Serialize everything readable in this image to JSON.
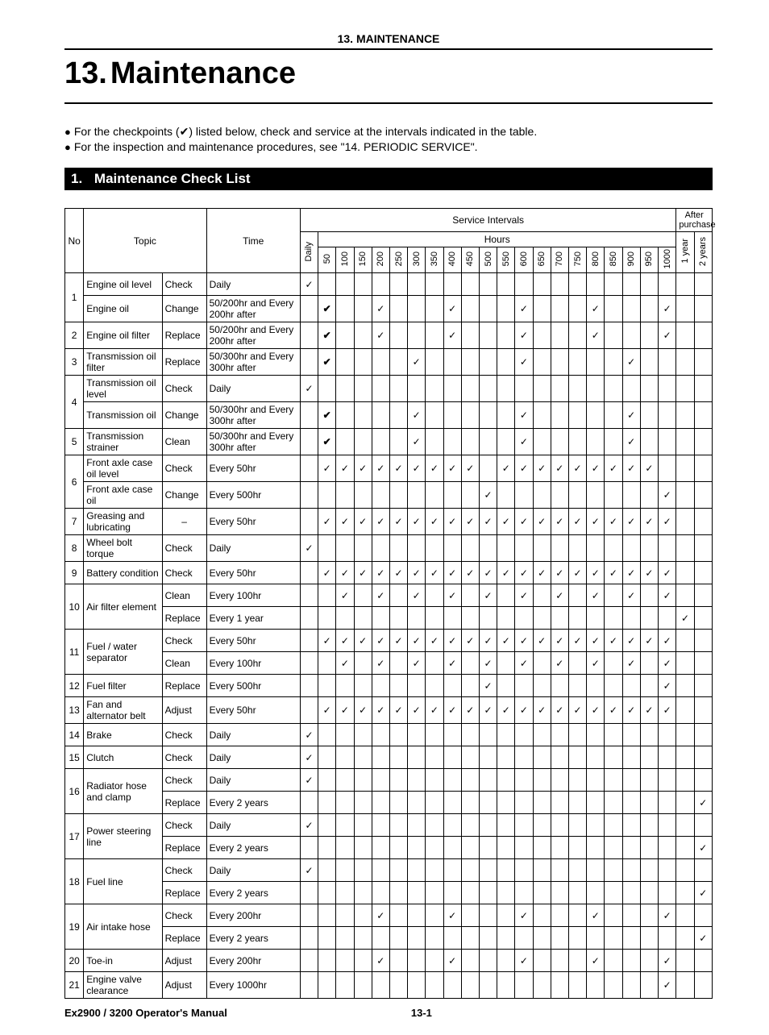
{
  "running_head": "13. MAINTENANCE",
  "chapter_number": "13.",
  "chapter_title": "Maintenance",
  "intro": [
    "For the checkpoints (✔) listed below, check and service at the intervals indicated in the table.",
    "For the inspection and maintenance procedures, see \"14. PERIODIC SERVICE\"."
  ],
  "section_num": "1.",
  "section_title": "Maintenance Check List",
  "head": {
    "no": "No",
    "topic": "Topic",
    "time": "Time",
    "service_intervals": "Service Intervals",
    "after_purchase": "After purchase",
    "hours": "Hours",
    "daily": "Daily",
    "year1": "1 year",
    "year2": "2 years",
    "hour_cols": [
      "50",
      "100",
      "150",
      "200",
      "250",
      "300",
      "350",
      "400",
      "450",
      "500",
      "550",
      "600",
      "650",
      "700",
      "750",
      "800",
      "850",
      "900",
      "950",
      "1000"
    ]
  },
  "tick": "✓",
  "tick_bold": "✔",
  "dash": "–",
  "rows": [
    {
      "no": "1",
      "items": [
        {
          "topic": "Engine oil level",
          "act": "Check",
          "time": "Daily",
          "daily": "t",
          "h": [],
          "y1": "",
          "y2": ""
        },
        {
          "topic": "Engine oil",
          "act": "Change",
          "time": "50/200hr and Every 200hr after",
          "daily": "",
          "h": [
            {
              "i": 0,
              "b": true
            },
            {
              "i": 3
            },
            {
              "i": 7
            },
            {
              "i": 11
            },
            {
              "i": 15
            },
            {
              "i": 19
            }
          ],
          "y1": "",
          "y2": ""
        }
      ]
    },
    {
      "no": "2",
      "items": [
        {
          "topic": "Engine oil filter",
          "act": "Replace",
          "time": "50/200hr and Every 200hr after",
          "daily": "",
          "h": [
            {
              "i": 0,
              "b": true
            },
            {
              "i": 3
            },
            {
              "i": 7
            },
            {
              "i": 11
            },
            {
              "i": 15
            },
            {
              "i": 19
            }
          ],
          "y1": "",
          "y2": ""
        }
      ]
    },
    {
      "no": "3",
      "items": [
        {
          "topic": "Transmission oil filter",
          "act": "Replace",
          "time": "50/300hr and Every 300hr after",
          "daily": "",
          "h": [
            {
              "i": 0,
              "b": true
            },
            {
              "i": 5
            },
            {
              "i": 11
            },
            {
              "i": 17
            }
          ],
          "y1": "",
          "y2": ""
        }
      ]
    },
    {
      "no": "4",
      "items": [
        {
          "topic": "Transmission oil level",
          "act": "Check",
          "time": "Daily",
          "daily": "t",
          "h": [],
          "y1": "",
          "y2": ""
        },
        {
          "topic": "Transmission oil",
          "act": "Change",
          "time": "50/300hr and Every 300hr after",
          "daily": "",
          "h": [
            {
              "i": 0,
              "b": true
            },
            {
              "i": 5
            },
            {
              "i": 11
            },
            {
              "i": 17
            }
          ],
          "y1": "",
          "y2": ""
        }
      ]
    },
    {
      "no": "5",
      "items": [
        {
          "topic": "Transmission strainer",
          "act": "Clean",
          "time": "50/300hr and Every 300hr after",
          "daily": "",
          "h": [
            {
              "i": 0,
              "b": true
            },
            {
              "i": 5
            },
            {
              "i": 11
            },
            {
              "i": 17
            }
          ],
          "y1": "",
          "y2": ""
        }
      ]
    },
    {
      "no": "6",
      "items": [
        {
          "topic": "Front axle case oil level",
          "act": "Check",
          "time": "Every 50hr",
          "daily": "",
          "h": [
            {
              "i": 0
            },
            {
              "i": 1
            },
            {
              "i": 2
            },
            {
              "i": 3
            },
            {
              "i": 4
            },
            {
              "i": 5
            },
            {
              "i": 6
            },
            {
              "i": 7
            },
            {
              "i": 8
            },
            {
              "i": 10
            },
            {
              "i": 11
            },
            {
              "i": 12
            },
            {
              "i": 13
            },
            {
              "i": 14
            },
            {
              "i": 15
            },
            {
              "i": 16
            },
            {
              "i": 17
            },
            {
              "i": 18
            }
          ],
          "y1": "",
          "y2": ""
        },
        {
          "topic": "Front axle case oil",
          "act": "Change",
          "time": "Every 500hr",
          "daily": "",
          "h": [
            {
              "i": 9
            },
            {
              "i": 19
            }
          ],
          "y1": "",
          "y2": ""
        }
      ]
    },
    {
      "no": "7",
      "items": [
        {
          "topic": "Greasing and lubricating",
          "act": "–",
          "time": "Every 50hr",
          "daily": "",
          "h": [
            {
              "i": 0
            },
            {
              "i": 1
            },
            {
              "i": 2
            },
            {
              "i": 3
            },
            {
              "i": 4
            },
            {
              "i": 5
            },
            {
              "i": 6
            },
            {
              "i": 7
            },
            {
              "i": 8
            },
            {
              "i": 9
            },
            {
              "i": 10
            },
            {
              "i": 11
            },
            {
              "i": 12
            },
            {
              "i": 13
            },
            {
              "i": 14
            },
            {
              "i": 15
            },
            {
              "i": 16
            },
            {
              "i": 17
            },
            {
              "i": 18
            },
            {
              "i": 19
            }
          ],
          "y1": "",
          "y2": ""
        }
      ]
    },
    {
      "no": "8",
      "items": [
        {
          "topic": "Wheel bolt torque",
          "act": "Check",
          "time": "Daily",
          "daily": "t",
          "h": [],
          "y1": "",
          "y2": ""
        }
      ]
    },
    {
      "no": "9",
      "items": [
        {
          "topic": "Battery condition",
          "act": "Check",
          "time": "Every 50hr",
          "daily": "",
          "h": [
            {
              "i": 0
            },
            {
              "i": 1
            },
            {
              "i": 2
            },
            {
              "i": 3
            },
            {
              "i": 4
            },
            {
              "i": 5
            },
            {
              "i": 6
            },
            {
              "i": 7
            },
            {
              "i": 8
            },
            {
              "i": 9
            },
            {
              "i": 10
            },
            {
              "i": 11
            },
            {
              "i": 12
            },
            {
              "i": 13
            },
            {
              "i": 14
            },
            {
              "i": 15
            },
            {
              "i": 16
            },
            {
              "i": 17
            },
            {
              "i": 18
            },
            {
              "i": 19
            }
          ],
          "y1": "",
          "y2": ""
        }
      ]
    },
    {
      "no": "10",
      "items": [
        {
          "topic": "Air filter element",
          "act": "Clean",
          "time": "Every 100hr",
          "daily": "",
          "h": [
            {
              "i": 1
            },
            {
              "i": 3
            },
            {
              "i": 5
            },
            {
              "i": 7
            },
            {
              "i": 9
            },
            {
              "i": 11
            },
            {
              "i": 13
            },
            {
              "i": 15
            },
            {
              "i": 17
            },
            {
              "i": 19
            }
          ],
          "y1": "",
          "y2": ""
        },
        {
          "topic": "",
          "act": "Replace",
          "time": "Every 1 year",
          "daily": "",
          "h": [],
          "y1": "t",
          "y2": ""
        }
      ]
    },
    {
      "no": "11",
      "items": [
        {
          "topic": "Fuel / water separator",
          "act": "Check",
          "time": "Every 50hr",
          "daily": "",
          "h": [
            {
              "i": 0
            },
            {
              "i": 1
            },
            {
              "i": 2
            },
            {
              "i": 3
            },
            {
              "i": 4
            },
            {
              "i": 5
            },
            {
              "i": 6
            },
            {
              "i": 7
            },
            {
              "i": 8
            },
            {
              "i": 9
            },
            {
              "i": 10
            },
            {
              "i": 11
            },
            {
              "i": 12
            },
            {
              "i": 13
            },
            {
              "i": 14
            },
            {
              "i": 15
            },
            {
              "i": 16
            },
            {
              "i": 17
            },
            {
              "i": 18
            },
            {
              "i": 19
            }
          ],
          "y1": "",
          "y2": ""
        },
        {
          "topic": "",
          "act": "Clean",
          "time": "Every 100hr",
          "daily": "",
          "h": [
            {
              "i": 1
            },
            {
              "i": 3
            },
            {
              "i": 5
            },
            {
              "i": 7
            },
            {
              "i": 9
            },
            {
              "i": 11
            },
            {
              "i": 13
            },
            {
              "i": 15
            },
            {
              "i": 17
            },
            {
              "i": 19
            }
          ],
          "y1": "",
          "y2": ""
        }
      ]
    },
    {
      "no": "12",
      "items": [
        {
          "topic": "Fuel filter",
          "act": "Replace",
          "time": "Every 500hr",
          "daily": "",
          "h": [
            {
              "i": 9
            },
            {
              "i": 19
            }
          ],
          "y1": "",
          "y2": ""
        }
      ]
    },
    {
      "no": "13",
      "items": [
        {
          "topic": "Fan and alternator belt",
          "act": "Adjust",
          "time": "Every 50hr",
          "daily": "",
          "h": [
            {
              "i": 0
            },
            {
              "i": 1
            },
            {
              "i": 2
            },
            {
              "i": 3
            },
            {
              "i": 4
            },
            {
              "i": 5
            },
            {
              "i": 6
            },
            {
              "i": 7
            },
            {
              "i": 8
            },
            {
              "i": 9
            },
            {
              "i": 10
            },
            {
              "i": 11
            },
            {
              "i": 12
            },
            {
              "i": 13
            },
            {
              "i": 14
            },
            {
              "i": 15
            },
            {
              "i": 16
            },
            {
              "i": 17
            },
            {
              "i": 18
            },
            {
              "i": 19
            }
          ],
          "y1": "",
          "y2": ""
        }
      ]
    },
    {
      "no": "14",
      "items": [
        {
          "topic": "Brake",
          "act": "Check",
          "time": "Daily",
          "daily": "t",
          "h": [],
          "y1": "",
          "y2": ""
        }
      ]
    },
    {
      "no": "15",
      "items": [
        {
          "topic": "Clutch",
          "act": "Check",
          "time": "Daily",
          "daily": "t",
          "h": [],
          "y1": "",
          "y2": ""
        }
      ]
    },
    {
      "no": "16",
      "items": [
        {
          "topic": "Radiator hose and clamp",
          "act": "Check",
          "time": "Daily",
          "daily": "t",
          "h": [],
          "y1": "",
          "y2": ""
        },
        {
          "topic": "",
          "act": "Replace",
          "time": "Every 2 years",
          "daily": "",
          "h": [],
          "y1": "",
          "y2": "t"
        }
      ]
    },
    {
      "no": "17",
      "items": [
        {
          "topic": "Power steering line",
          "act": "Check",
          "time": "Daily",
          "daily": "t",
          "h": [],
          "y1": "",
          "y2": ""
        },
        {
          "topic": "",
          "act": "Replace",
          "time": "Every 2 years",
          "daily": "",
          "h": [],
          "y1": "",
          "y2": "t"
        }
      ]
    },
    {
      "no": "18",
      "items": [
        {
          "topic": "Fuel line",
          "act": "Check",
          "time": "Daily",
          "daily": "t",
          "h": [],
          "y1": "",
          "y2": ""
        },
        {
          "topic": "",
          "act": "Replace",
          "time": "Every 2 years",
          "daily": "",
          "h": [],
          "y1": "",
          "y2": "t"
        }
      ]
    },
    {
      "no": "19",
      "items": [
        {
          "topic": "Air intake hose",
          "act": "Check",
          "time": "Every 200hr",
          "daily": "",
          "h": [
            {
              "i": 3
            },
            {
              "i": 7
            },
            {
              "i": 11
            },
            {
              "i": 15
            },
            {
              "i": 19
            }
          ],
          "y1": "",
          "y2": ""
        },
        {
          "topic": "",
          "act": "Replace",
          "time": "Every 2 years",
          "daily": "",
          "h": [],
          "y1": "",
          "y2": "t"
        }
      ]
    },
    {
      "no": "20",
      "items": [
        {
          "topic": "Toe-in",
          "act": "Adjust",
          "time": "Every 200hr",
          "daily": "",
          "h": [
            {
              "i": 3
            },
            {
              "i": 7
            },
            {
              "i": 11
            },
            {
              "i": 15
            },
            {
              "i": 19
            }
          ],
          "y1": "",
          "y2": ""
        }
      ]
    },
    {
      "no": "21",
      "items": [
        {
          "topic": "Engine valve clearance",
          "act": "Adjust",
          "time": "Every 1000hr",
          "daily": "",
          "h": [
            {
              "i": 19
            }
          ],
          "y1": "",
          "y2": ""
        }
      ]
    }
  ],
  "footer_left": "Ex2900 / 3200 Operator's Manual",
  "footer_page": "13-1"
}
